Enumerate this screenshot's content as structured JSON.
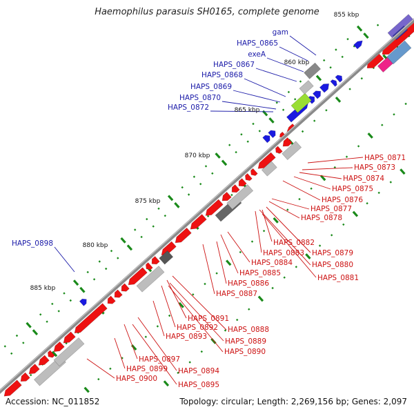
{
  "title": "Haemophilus parasuis SH0165, complete genome",
  "accession_text": "Accession: NC_011852",
  "summary_text": "Topology: circular; Length: 2,269,156 bp; Genes: 2,097",
  "colors": {
    "forward": "#1a1ae0",
    "reverse": "#ee1111",
    "label_forward": "#1a1aa8",
    "label_reverse": "#cc1111",
    "backbone": "#8a8a8a",
    "tick": "#1a8a1a",
    "gray_feature": "#bdbdbd",
    "dark_feature": "#666666",
    "green_feature": "#99dd33",
    "pink_feature": "#ee2288",
    "steel_feature": "#6699cc",
    "purple_feature": "#7766cc"
  },
  "scale_labels": [
    {
      "text": "855 kbp"
    },
    {
      "text": "860 kbp"
    },
    {
      "text": "865 kbp"
    },
    {
      "text": "870 kbp"
    },
    {
      "text": "875 kbp"
    },
    {
      "text": "880 kbp"
    },
    {
      "text": "885 kbp"
    }
  ],
  "forward_gene_labels": [
    {
      "text": "gam"
    },
    {
      "text": "HAPS_0865"
    },
    {
      "text": "exeA"
    },
    {
      "text": "HAPS_0867"
    },
    {
      "text": "HAPS_0868"
    },
    {
      "text": "HAPS_0869"
    },
    {
      "text": "HAPS_0870"
    },
    {
      "text": "HAPS_0872"
    },
    {
      "text": "HAPS_0898"
    }
  ],
  "reverse_gene_labels": [
    {
      "text": "HAPS_0871"
    },
    {
      "text": "HAPS_0873"
    },
    {
      "text": "HAPS_0874"
    },
    {
      "text": "HAPS_0875"
    },
    {
      "text": "HAPS_0876"
    },
    {
      "text": "HAPS_0877"
    },
    {
      "text": "HAPS_0878"
    },
    {
      "text": "HAPS_0882"
    },
    {
      "text": "HAPS_0879"
    },
    {
      "text": "HAPS_0883"
    },
    {
      "text": "HAPS_0880"
    },
    {
      "text": "HAPS_0884"
    },
    {
      "text": "HAPS_0881"
    },
    {
      "text": "HAPS_0885"
    },
    {
      "text": "HAPS_0886"
    },
    {
      "text": "HAPS_0887"
    },
    {
      "text": "HAPS_0891"
    },
    {
      "text": "HAPS_0892"
    },
    {
      "text": "HAPS_0888"
    },
    {
      "text": "HAPS_0893"
    },
    {
      "text": "HAPS_0889"
    },
    {
      "text": "HAPS_0890"
    },
    {
      "text": "HAPS_0897"
    },
    {
      "text": "HAPS_0899"
    },
    {
      "text": "HAPS_0894"
    },
    {
      "text": "HAPS_0900"
    },
    {
      "text": "HAPS_0895"
    }
  ]
}
